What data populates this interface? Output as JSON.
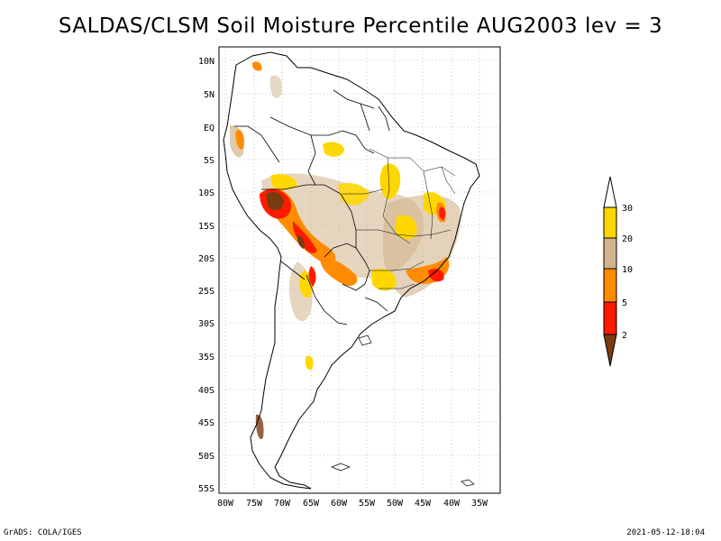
{
  "title": "SALDAS/CLSM Soil Moisture Percentile AUG2003 lev = 3",
  "footer_left": "GrADS: COLA/IGES",
  "footer_right": "2021-05-12-18:04",
  "lat_labels": [
    "10N",
    "5N",
    "EQ",
    "5S",
    "10S",
    "15S",
    "20S",
    "25S",
    "30S",
    "35S",
    "40S",
    "45S",
    "50S",
    "55S"
  ],
  "lon_labels": [
    "80W",
    "75W",
    "70W",
    "65W",
    "60W",
    "55W",
    "50W",
    "45W",
    "40W",
    "35W"
  ],
  "legend": {
    "ticks": [
      "2",
      "5",
      "10",
      "20",
      "30"
    ],
    "colors": {
      "below2": "#7a3b10",
      "c2_5": "#ff1a00",
      "c5_10": "#ff8c00",
      "c10_20": "#d2b48c",
      "c20_30": "#ffd700",
      "above30": "#ffffff"
    }
  }
}
